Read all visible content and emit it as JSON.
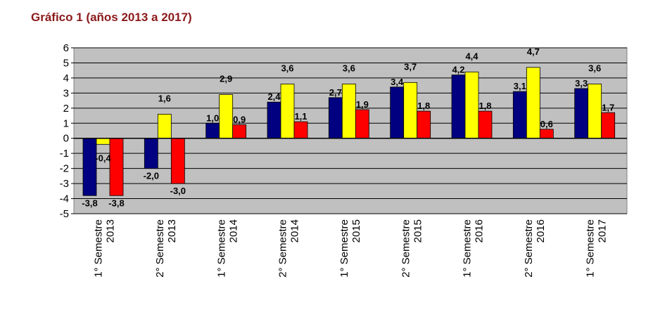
{
  "title": "Gráfico 1 (años 2013 a 2017)",
  "chart_data": {
    "type": "bar",
    "title": "Gráfico 1 (años 2013 a 2017)",
    "xlabel": "",
    "ylabel": "",
    "ylim": [
      -5,
      6
    ],
    "yticks": [
      "6",
      "5",
      "4",
      "3",
      "2",
      "1",
      "0",
      "-1",
      "-2",
      "-3",
      "-4",
      "-5"
    ],
    "grid": true,
    "categories": [
      [
        "1° Semestre",
        "2013"
      ],
      [
        "2° Semestre",
        "2013"
      ],
      [
        "1° Semestre",
        "2014"
      ],
      [
        "2° Semestre",
        "2014"
      ],
      [
        "1° Semestre",
        "2015"
      ],
      [
        "2° Semestre",
        "2015"
      ],
      [
        "1° Semestre",
        "2016"
      ],
      [
        "2° Semestre",
        "2016"
      ],
      [
        "1° Semestre",
        "2017"
      ]
    ],
    "series": [
      {
        "name": "",
        "color": "#000080",
        "values": [
          -3.8,
          -2.0,
          1.0,
          2.4,
          2.7,
          3.4,
          4.2,
          3.1,
          3.3
        ],
        "labels": [
          "-3,8",
          "-2,0",
          "1,0",
          "2,4",
          "2,7",
          "3,4",
          "4,2",
          "3,1",
          "3,3"
        ]
      },
      {
        "name": "",
        "color": "#ffff00",
        "values": [
          -0.4,
          1.6,
          2.9,
          3.6,
          3.6,
          3.7,
          4.4,
          4.7,
          3.6
        ],
        "labels": [
          "-0,4",
          "1,6",
          "2,9",
          "3,6",
          "3,6",
          "3,7",
          "4,4",
          "4,7",
          "3,6"
        ]
      },
      {
        "name": "",
        "color": "#ff0000",
        "values": [
          -3.8,
          -3.0,
          0.9,
          1.1,
          1.9,
          1.8,
          1.8,
          0.6,
          1.7
        ],
        "labels": [
          "-3,8",
          "-3,0",
          "0,9",
          "1,1",
          "1,9",
          "1,8",
          "1,8",
          "0,6",
          "1,7"
        ]
      }
    ]
  }
}
